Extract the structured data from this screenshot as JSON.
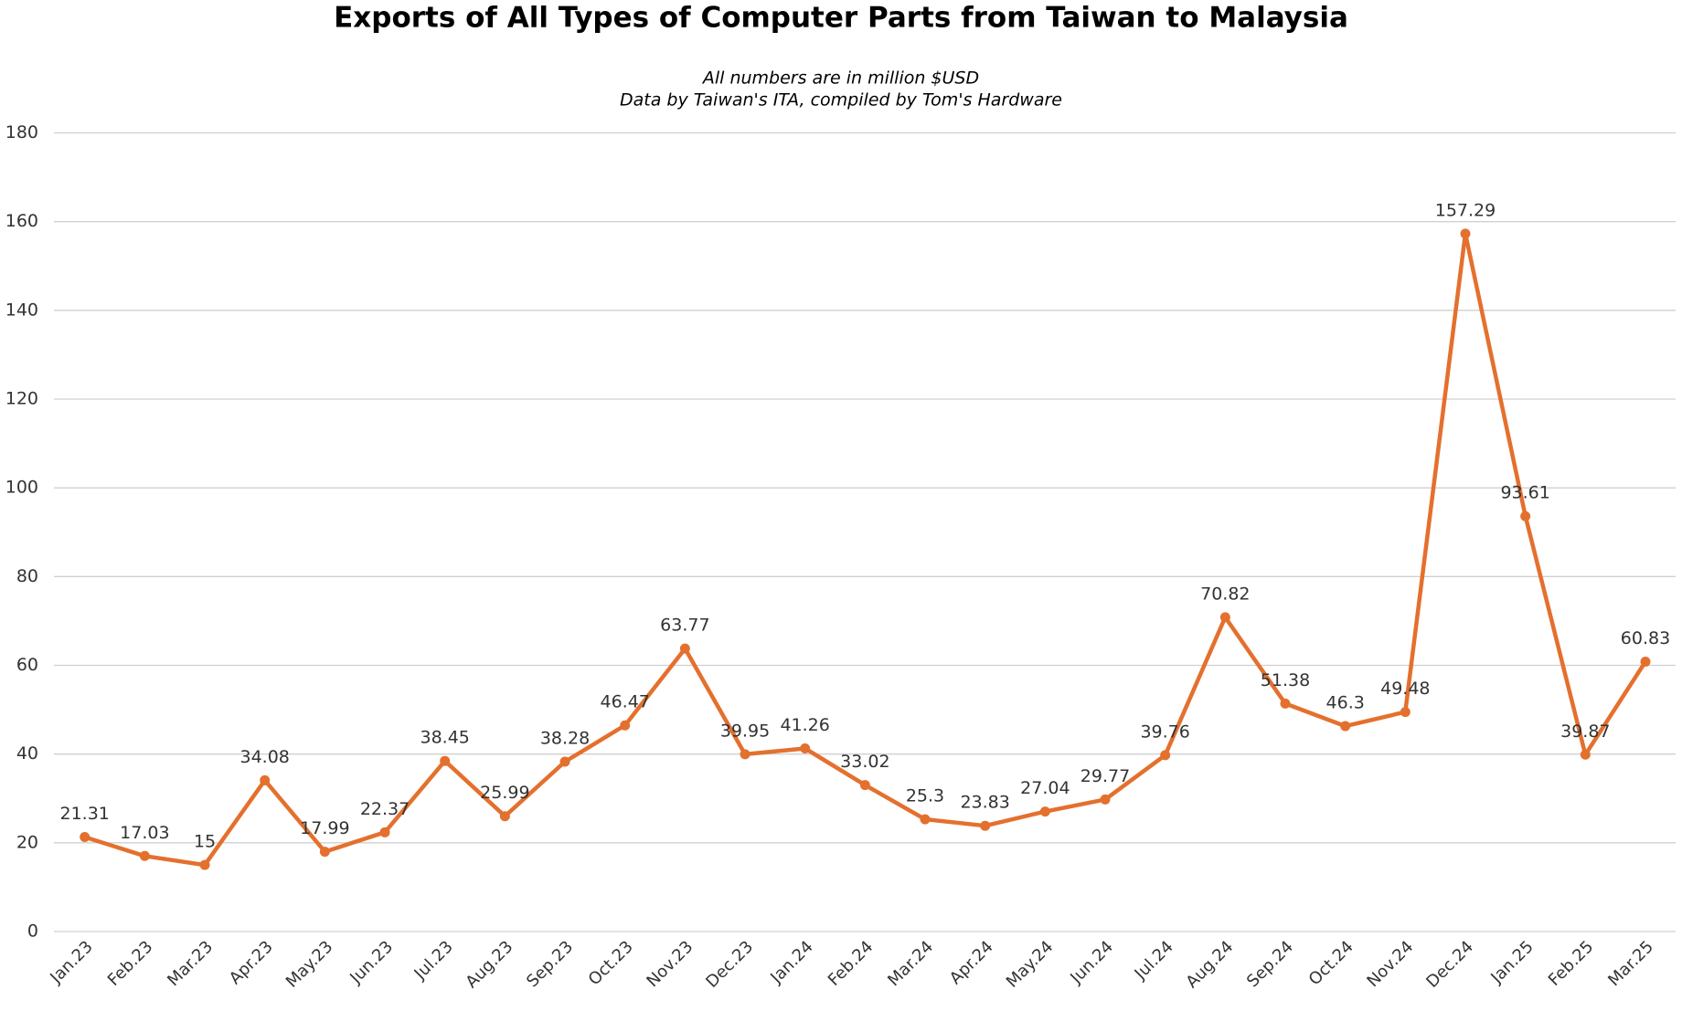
{
  "chart_data": {
    "type": "line",
    "title": "Exports of All Types of Computer Parts from Taiwan to Malaysia",
    "subtitle": [
      "All numbers are in million $USD",
      "Data by Taiwan's ITA, compiled by Tom's Hardware"
    ],
    "categories": [
      "Jan.23",
      "Feb.23",
      "Mar.23",
      "Apr.23",
      "May.23",
      "Jun.23",
      "Jul.23",
      "Aug.23",
      "Sep.23",
      "Oct.23",
      "Nov.23",
      "Dec.23",
      "Jan.24",
      "Feb.24",
      "Mar.24",
      "Apr.24",
      "May.24",
      "Jun.24",
      "Jul.24",
      "Aug.24",
      "Sep.24",
      "Oct.24",
      "Nov.24",
      "Dec.24",
      "Jan.25",
      "Feb.25",
      "Mar.25"
    ],
    "series": [
      {
        "name": "Exports",
        "color": "#e4702e",
        "values": [
          21.31,
          17.03,
          15,
          34.08,
          17.99,
          22.37,
          38.45,
          25.99,
          38.28,
          46.47,
          63.77,
          39.95,
          41.26,
          33.02,
          25.3,
          23.83,
          27.04,
          29.77,
          39.76,
          70.82,
          51.38,
          46.3,
          49.48,
          157.29,
          93.61,
          39.87,
          60.83
        ]
      }
    ],
    "ylim": [
      0,
      180
    ],
    "yticks": [
      0,
      20,
      40,
      60,
      80,
      100,
      120,
      140,
      160,
      180
    ],
    "grid": true
  }
}
